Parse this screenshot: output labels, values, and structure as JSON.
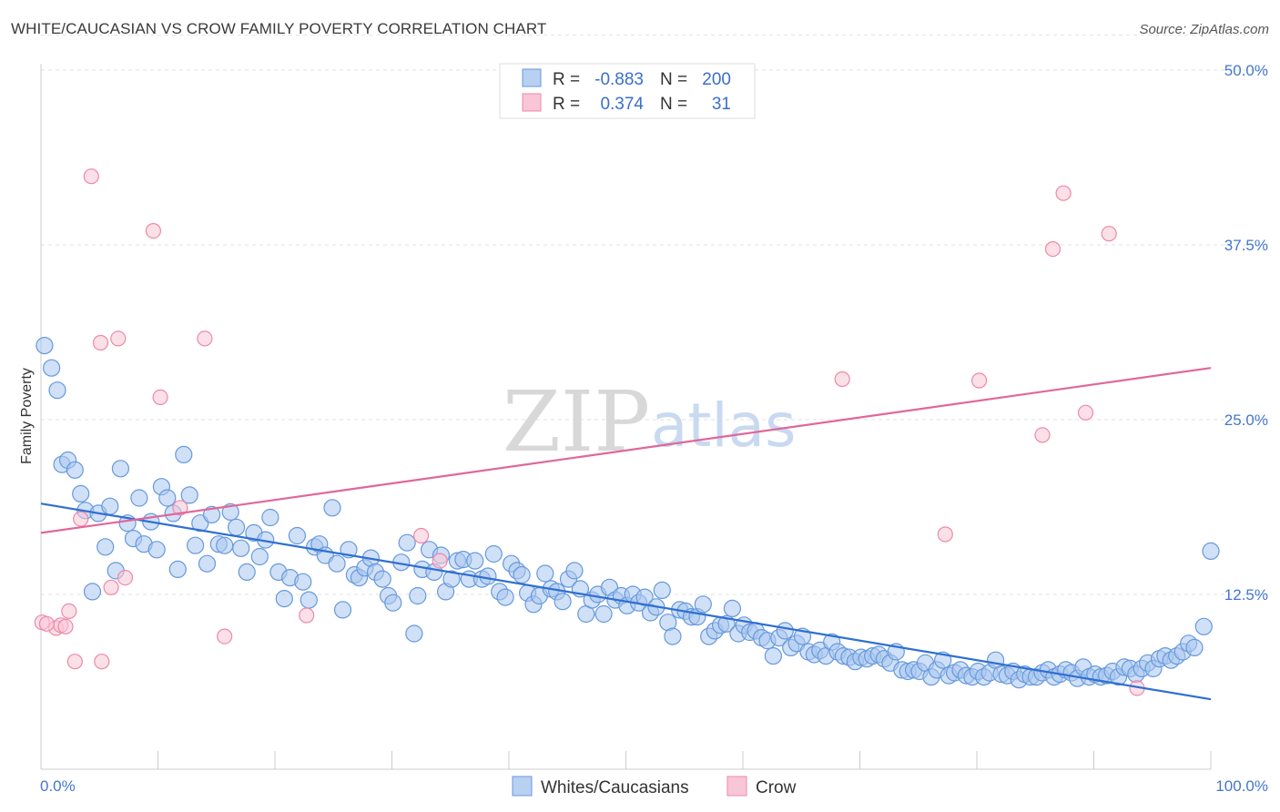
{
  "title": "WHITE/CAUCASIAN VS CROW FAMILY POVERTY CORRELATION CHART",
  "source": "Source: ZipAtlas.com",
  "watermark": {
    "zip": "ZIP",
    "atlas": "atlas"
  },
  "legend": {
    "rows": [
      {
        "r_label": "R =",
        "r_value": "-0.883",
        "n_label": "N =",
        "n_value": "200",
        "color": "#6699dd"
      },
      {
        "r_label": "R =",
        "r_value": "0.374",
        "n_label": "N =",
        "n_value": "31",
        "color": "#ee88aa"
      }
    ]
  },
  "bottom_legend": [
    {
      "label": "Whites/Caucasians",
      "color": "#6699dd"
    },
    {
      "label": "Crow",
      "color": "#ee88aa"
    }
  ],
  "chart_data": {
    "type": "scatter",
    "title": "WHITE/CAUCASIAN VS CROW FAMILY POVERTY CORRELATION CHART",
    "xlabel": "",
    "ylabel": "Family Poverty",
    "xlim": [
      0,
      100
    ],
    "ylim": [
      0,
      52.5
    ],
    "x_tick_labels": [
      "0.0%",
      "100.0%"
    ],
    "y_ticks": [
      12.5,
      25.0,
      37.5,
      50.0
    ],
    "y_tick_labels": [
      "12.5%",
      "25.0%",
      "37.5%",
      "50.0%"
    ],
    "series": [
      {
        "name": "Whites/Caucasians",
        "color": "#6699dd",
        "trend": {
          "x": [
            0,
            100
          ],
          "y": [
            19.0,
            5.0
          ]
        },
        "points": [
          [
            0.3,
            30.3
          ],
          [
            0.9,
            28.7
          ],
          [
            1.4,
            27.1
          ],
          [
            1.8,
            21.8
          ],
          [
            2.3,
            22.1
          ],
          [
            2.9,
            21.4
          ],
          [
            3.4,
            19.7
          ],
          [
            3.8,
            18.5
          ],
          [
            4.4,
            12.7
          ],
          [
            4.9,
            18.3
          ],
          [
            5.5,
            15.9
          ],
          [
            5.9,
            18.8
          ],
          [
            6.4,
            14.2
          ],
          [
            6.8,
            21.5
          ],
          [
            7.4,
            17.6
          ],
          [
            7.9,
            16.5
          ],
          [
            8.4,
            19.4
          ],
          [
            8.8,
            16.1
          ],
          [
            9.4,
            17.7
          ],
          [
            9.9,
            15.7
          ],
          [
            10.3,
            20.2
          ],
          [
            10.8,
            19.4
          ],
          [
            11.3,
            18.3
          ],
          [
            11.7,
            14.3
          ],
          [
            12.2,
            22.5
          ],
          [
            12.7,
            19.6
          ],
          [
            13.2,
            16.0
          ],
          [
            13.6,
            17.6
          ],
          [
            14.2,
            14.7
          ],
          [
            14.6,
            18.2
          ],
          [
            15.2,
            16.1
          ],
          [
            15.7,
            16.0
          ],
          [
            16.2,
            18.4
          ],
          [
            16.7,
            17.3
          ],
          [
            17.1,
            15.8
          ],
          [
            17.6,
            14.1
          ],
          [
            18.2,
            16.9
          ],
          [
            18.7,
            15.2
          ],
          [
            19.2,
            16.4
          ],
          [
            19.6,
            18.0
          ],
          [
            20.3,
            14.1
          ],
          [
            20.8,
            12.2
          ],
          [
            21.3,
            13.7
          ],
          [
            21.9,
            16.7
          ],
          [
            22.4,
            13.4
          ],
          [
            22.9,
            12.1
          ],
          [
            23.4,
            15.9
          ],
          [
            23.8,
            16.1
          ],
          [
            24.3,
            15.3
          ],
          [
            24.9,
            18.7
          ],
          [
            25.3,
            14.7
          ],
          [
            25.8,
            11.4
          ],
          [
            26.3,
            15.7
          ],
          [
            26.8,
            13.9
          ],
          [
            27.2,
            13.7
          ],
          [
            27.7,
            14.4
          ],
          [
            28.2,
            15.1
          ],
          [
            28.6,
            14.1
          ],
          [
            29.2,
            13.6
          ],
          [
            29.7,
            12.4
          ],
          [
            30.1,
            11.9
          ],
          [
            30.8,
            14.8
          ],
          [
            31.3,
            16.2
          ],
          [
            31.9,
            9.7
          ],
          [
            32.2,
            12.4
          ],
          [
            32.6,
            14.3
          ],
          [
            33.2,
            15.7
          ],
          [
            33.6,
            14.1
          ],
          [
            34.2,
            15.3
          ],
          [
            34.6,
            12.7
          ],
          [
            35.1,
            13.6
          ],
          [
            35.6,
            14.9
          ],
          [
            36.1,
            15.0
          ],
          [
            36.6,
            13.6
          ],
          [
            37.1,
            14.9
          ],
          [
            37.7,
            13.6
          ],
          [
            38.2,
            13.8
          ],
          [
            38.7,
            15.4
          ],
          [
            39.2,
            12.7
          ],
          [
            39.7,
            12.3
          ],
          [
            40.2,
            14.7
          ],
          [
            40.7,
            14.2
          ],
          [
            41.1,
            13.9
          ],
          [
            41.6,
            12.6
          ],
          [
            42.1,
            11.8
          ],
          [
            42.6,
            12.4
          ],
          [
            43.1,
            14.0
          ],
          [
            43.6,
            12.9
          ],
          [
            44.1,
            12.7
          ],
          [
            44.6,
            12.0
          ],
          [
            45.1,
            13.6
          ],
          [
            45.6,
            14.2
          ],
          [
            46.1,
            12.9
          ],
          [
            46.6,
            11.1
          ],
          [
            47.1,
            12.1
          ],
          [
            47.6,
            12.5
          ],
          [
            48.1,
            11.1
          ],
          [
            48.6,
            13.0
          ],
          [
            49.1,
            12.1
          ],
          [
            49.6,
            12.4
          ],
          [
            50.1,
            11.7
          ],
          [
            50.6,
            12.5
          ],
          [
            51.1,
            11.9
          ],
          [
            51.6,
            12.3
          ],
          [
            52.1,
            11.2
          ],
          [
            52.6,
            11.6
          ],
          [
            53.1,
            12.8
          ],
          [
            53.6,
            10.5
          ],
          [
            54.0,
            9.5
          ],
          [
            54.6,
            11.4
          ],
          [
            55.1,
            11.3
          ],
          [
            55.6,
            10.9
          ],
          [
            56.1,
            10.9
          ],
          [
            56.6,
            11.8
          ],
          [
            57.1,
            9.5
          ],
          [
            57.6,
            9.9
          ],
          [
            58.1,
            10.3
          ],
          [
            58.6,
            10.4
          ],
          [
            59.1,
            11.5
          ],
          [
            59.6,
            9.7
          ],
          [
            60.1,
            10.3
          ],
          [
            60.6,
            9.8
          ],
          [
            61.1,
            9.9
          ],
          [
            61.6,
            9.4
          ],
          [
            62.1,
            9.2
          ],
          [
            62.6,
            8.1
          ],
          [
            63.1,
            9.4
          ],
          [
            63.6,
            9.9
          ],
          [
            64.1,
            8.7
          ],
          [
            64.6,
            9.0
          ],
          [
            65.1,
            9.5
          ],
          [
            65.6,
            8.4
          ],
          [
            66.1,
            8.2
          ],
          [
            66.6,
            8.5
          ],
          [
            67.1,
            8.1
          ],
          [
            67.6,
            9.1
          ],
          [
            68.1,
            8.4
          ],
          [
            68.6,
            8.1
          ],
          [
            69.1,
            8.0
          ],
          [
            69.6,
            7.7
          ],
          [
            70.1,
            8.0
          ],
          [
            70.6,
            7.9
          ],
          [
            71.1,
            8.1
          ],
          [
            71.6,
            8.2
          ],
          [
            72.1,
            7.9
          ],
          [
            72.6,
            7.6
          ],
          [
            73.1,
            8.4
          ],
          [
            73.6,
            7.1
          ],
          [
            74.1,
            7.0
          ],
          [
            74.6,
            7.1
          ],
          [
            75.1,
            7.0
          ],
          [
            75.6,
            7.6
          ],
          [
            76.1,
            6.6
          ],
          [
            76.6,
            7.1
          ],
          [
            77.1,
            7.8
          ],
          [
            77.6,
            6.7
          ],
          [
            78.1,
            6.9
          ],
          [
            78.6,
            7.1
          ],
          [
            79.1,
            6.7
          ],
          [
            79.6,
            6.6
          ],
          [
            80.1,
            7.0
          ],
          [
            80.6,
            6.6
          ],
          [
            81.1,
            6.9
          ],
          [
            81.6,
            7.8
          ],
          [
            82.1,
            6.8
          ],
          [
            82.6,
            6.7
          ],
          [
            83.1,
            7.0
          ],
          [
            83.6,
            6.4
          ],
          [
            84.1,
            6.8
          ],
          [
            84.6,
            6.6
          ],
          [
            85.1,
            6.6
          ],
          [
            85.6,
            6.9
          ],
          [
            86.1,
            7.1
          ],
          [
            86.6,
            6.6
          ],
          [
            87.1,
            6.8
          ],
          [
            87.6,
            7.1
          ],
          [
            88.1,
            6.9
          ],
          [
            88.6,
            6.5
          ],
          [
            89.1,
            7.3
          ],
          [
            89.6,
            6.6
          ],
          [
            90.1,
            6.8
          ],
          [
            90.6,
            6.6
          ],
          [
            91.1,
            6.7
          ],
          [
            91.6,
            7.0
          ],
          [
            92.1,
            6.6
          ],
          [
            92.6,
            7.3
          ],
          [
            93.1,
            7.2
          ],
          [
            93.6,
            6.8
          ],
          [
            94.1,
            7.2
          ],
          [
            94.6,
            7.6
          ],
          [
            95.1,
            7.2
          ],
          [
            95.6,
            7.9
          ],
          [
            96.1,
            8.1
          ],
          [
            96.6,
            7.8
          ],
          [
            97.1,
            8.1
          ],
          [
            97.6,
            8.4
          ],
          [
            98.1,
            9.0
          ],
          [
            98.6,
            8.7
          ],
          [
            99.4,
            10.2
          ],
          [
            100.0,
            15.6
          ]
        ]
      },
      {
        "name": "Crow",
        "color": "#ee88aa",
        "trend": {
          "x": [
            0,
            100
          ],
          "y": [
            16.9,
            28.7
          ]
        },
        "points": [
          [
            0.1,
            10.5
          ],
          [
            1.3,
            10.1
          ],
          [
            1.7,
            10.3
          ],
          [
            2.1,
            10.2
          ],
          [
            2.4,
            11.3
          ],
          [
            2.9,
            7.7
          ],
          [
            3.4,
            17.9
          ],
          [
            4.3,
            42.4
          ],
          [
            5.1,
            30.5
          ],
          [
            5.2,
            7.7
          ],
          [
            6.0,
            13.0
          ],
          [
            6.6,
            30.8
          ],
          [
            7.2,
            13.7
          ],
          [
            9.6,
            38.5
          ],
          [
            10.2,
            26.6
          ],
          [
            11.9,
            18.7
          ],
          [
            14.0,
            30.8
          ],
          [
            15.7,
            9.5
          ],
          [
            22.7,
            11.0
          ],
          [
            32.5,
            16.7
          ],
          [
            34.1,
            14.9
          ],
          [
            68.5,
            27.9
          ],
          [
            77.3,
            16.8
          ],
          [
            80.2,
            27.8
          ],
          [
            85.6,
            23.9
          ],
          [
            86.5,
            37.2
          ],
          [
            87.4,
            41.2
          ],
          [
            89.3,
            25.5
          ],
          [
            91.3,
            38.3
          ],
          [
            93.7,
            5.8
          ],
          [
            0.5,
            10.4
          ]
        ]
      }
    ]
  }
}
